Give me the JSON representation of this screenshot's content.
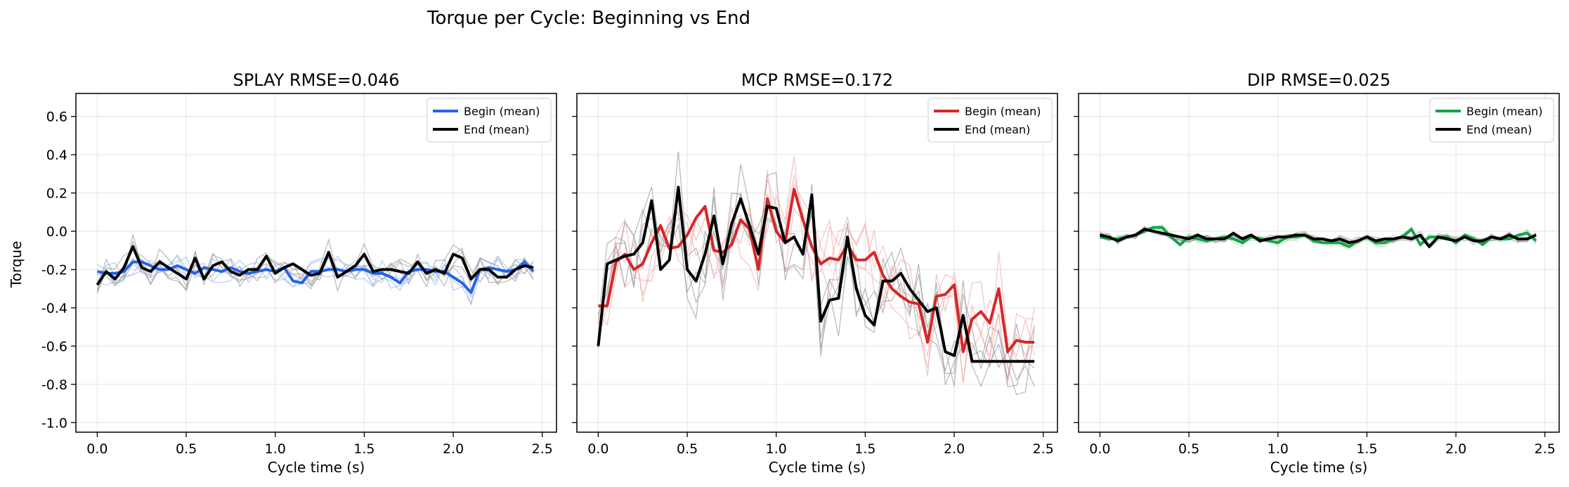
{
  "figure_title": "Torque per Cycle: Beginning vs End",
  "shared_ylabel": "Torque",
  "chart_data": [
    {
      "type": "line",
      "title": "SPLAY  RMSE=0.046",
      "xlabel": "Cycle time (s)",
      "ylabel": "Torque",
      "xlim": [
        -0.12,
        2.58
      ],
      "ylim": [
        -1.05,
        0.72
      ],
      "xticks": [
        0.0,
        0.5,
        1.0,
        1.5,
        2.0,
        2.5
      ],
      "yticks": [
        -1.0,
        -0.8,
        -0.6,
        -0.4,
        -0.2,
        0.0,
        0.2,
        0.4,
        0.6
      ],
      "grid": true,
      "legend_position": "top-right",
      "colors": {
        "begin": "#2563eb",
        "end": "#000000",
        "begin_trials": "#9db4e8",
        "end_trials": "#999999"
      },
      "x": [
        0.0,
        0.05,
        0.1,
        0.15,
        0.2,
        0.25,
        0.3,
        0.35,
        0.4,
        0.45,
        0.5,
        0.55,
        0.6,
        0.65,
        0.7,
        0.75,
        0.8,
        0.85,
        0.9,
        0.95,
        1.0,
        1.05,
        1.1,
        1.15,
        1.2,
        1.25,
        1.3,
        1.35,
        1.4,
        1.45,
        1.5,
        1.55,
        1.6,
        1.65,
        1.7,
        1.75,
        1.8,
        1.85,
        1.9,
        1.95,
        2.0,
        2.05,
        2.1,
        2.15,
        2.2,
        2.25,
        2.3,
        2.35,
        2.4,
        2.45
      ],
      "series": [
        {
          "name": "Begin (mean)",
          "values": [
            -0.21,
            -0.22,
            -0.22,
            -0.21,
            -0.16,
            -0.16,
            -0.18,
            -0.2,
            -0.2,
            -0.18,
            -0.2,
            -0.22,
            -0.19,
            -0.2,
            -0.21,
            -0.19,
            -0.21,
            -0.22,
            -0.21,
            -0.2,
            -0.21,
            -0.19,
            -0.26,
            -0.27,
            -0.21,
            -0.21,
            -0.2,
            -0.2,
            -0.21,
            -0.2,
            -0.2,
            -0.22,
            -0.22,
            -0.24,
            -0.27,
            -0.21,
            -0.2,
            -0.2,
            -0.21,
            -0.21,
            -0.24,
            -0.27,
            -0.32,
            -0.2,
            -0.19,
            -0.2,
            -0.21,
            -0.2,
            -0.16,
            -0.21
          ]
        },
        {
          "name": "End (mean)",
          "values": [
            -0.28,
            -0.21,
            -0.25,
            -0.19,
            -0.08,
            -0.19,
            -0.21,
            -0.16,
            -0.19,
            -0.22,
            -0.25,
            -0.14,
            -0.25,
            -0.18,
            -0.16,
            -0.21,
            -0.23,
            -0.2,
            -0.2,
            -0.13,
            -0.22,
            -0.19,
            -0.17,
            -0.2,
            -0.23,
            -0.22,
            -0.11,
            -0.24,
            -0.21,
            -0.18,
            -0.12,
            -0.21,
            -0.2,
            -0.2,
            -0.21,
            -0.22,
            -0.16,
            -0.22,
            -0.2,
            -0.22,
            -0.12,
            -0.14,
            -0.25,
            -0.2,
            -0.2,
            -0.24,
            -0.24,
            -0.2,
            -0.18,
            -0.19
          ]
        }
      ]
    },
    {
      "type": "line",
      "title": "MCP  RMSE=0.172",
      "xlabel": "Cycle time (s)",
      "ylabel": "",
      "xlim": [
        -0.12,
        2.58
      ],
      "ylim": [
        -1.05,
        0.72
      ],
      "xticks": [
        0.0,
        0.5,
        1.0,
        1.5,
        2.0,
        2.5
      ],
      "yticks": [
        -1.0,
        -0.8,
        -0.6,
        -0.4,
        -0.2,
        0.0,
        0.2,
        0.4,
        0.6
      ],
      "grid": true,
      "legend_position": "top-right",
      "colors": {
        "begin": "#d62728",
        "end": "#000000",
        "begin_trials": "#f2a9aa",
        "end_trials": "#999999"
      },
      "x": [
        0.0,
        0.05,
        0.1,
        0.15,
        0.2,
        0.25,
        0.3,
        0.35,
        0.4,
        0.45,
        0.5,
        0.55,
        0.6,
        0.65,
        0.7,
        0.75,
        0.8,
        0.85,
        0.9,
        0.95,
        1.0,
        1.05,
        1.1,
        1.15,
        1.2,
        1.25,
        1.3,
        1.35,
        1.4,
        1.45,
        1.5,
        1.55,
        1.6,
        1.65,
        1.7,
        1.75,
        1.8,
        1.85,
        1.9,
        1.95,
        2.0,
        2.05,
        2.1,
        2.15,
        2.2,
        2.25,
        2.3,
        2.35,
        2.4,
        2.45
      ],
      "series": [
        {
          "name": "Begin (mean)",
          "values": [
            -0.39,
            -0.39,
            -0.16,
            -0.12,
            -0.2,
            -0.17,
            -0.06,
            0.03,
            -0.09,
            -0.08,
            -0.02,
            0.07,
            0.13,
            -0.1,
            -0.11,
            -0.07,
            0.06,
            0.01,
            -0.2,
            0.17,
            0.0,
            -0.06,
            0.22,
            0.06,
            -0.08,
            -0.17,
            -0.14,
            -0.15,
            -0.07,
            -0.15,
            -0.15,
            -0.11,
            -0.23,
            -0.3,
            -0.34,
            -0.37,
            -0.38,
            -0.58,
            -0.34,
            -0.33,
            -0.28,
            -0.63,
            -0.46,
            -0.42,
            -0.48,
            -0.3,
            -0.63,
            -0.57,
            -0.58,
            -0.58
          ]
        },
        {
          "name": "End (mean)",
          "values": [
            -0.6,
            -0.17,
            -0.15,
            -0.13,
            -0.12,
            -0.06,
            0.16,
            -0.2,
            -0.15,
            0.23,
            -0.2,
            -0.26,
            -0.12,
            0.08,
            -0.17,
            0.04,
            0.17,
            0.03,
            -0.12,
            0.13,
            0.12,
            -0.06,
            -0.03,
            -0.12,
            0.19,
            -0.47,
            -0.36,
            -0.35,
            -0.03,
            -0.3,
            -0.44,
            -0.49,
            -0.26,
            -0.26,
            -0.22,
            -0.3,
            -0.36,
            -0.42,
            -0.4,
            -0.63,
            -0.65,
            -0.44,
            -0.68,
            -0.68,
            -0.68,
            -0.68,
            -0.68,
            -0.68,
            -0.68,
            -0.68
          ]
        }
      ]
    },
    {
      "type": "line",
      "title": "DIP  RMSE=0.025",
      "xlabel": "Cycle time (s)",
      "ylabel": "",
      "xlim": [
        -0.12,
        2.58
      ],
      "ylim": [
        -1.05,
        0.72
      ],
      "xticks": [
        0.0,
        0.5,
        1.0,
        1.5,
        2.0,
        2.5
      ],
      "yticks": [
        -1.0,
        -0.8,
        -0.6,
        -0.4,
        -0.2,
        0.0,
        0.2,
        0.4,
        0.6
      ],
      "grid": true,
      "legend_position": "top-right",
      "colors": {
        "begin": "#16a34a",
        "end": "#000000",
        "begin_trials": "#9fd9b1",
        "end_trials": "#999999"
      },
      "x": [
        0.0,
        0.05,
        0.1,
        0.15,
        0.2,
        0.25,
        0.3,
        0.35,
        0.4,
        0.45,
        0.5,
        0.55,
        0.6,
        0.65,
        0.7,
        0.75,
        0.8,
        0.85,
        0.9,
        0.95,
        1.0,
        1.05,
        1.1,
        1.15,
        1.2,
        1.25,
        1.3,
        1.35,
        1.4,
        1.45,
        1.5,
        1.55,
        1.6,
        1.65,
        1.7,
        1.75,
        1.8,
        1.85,
        1.9,
        1.95,
        2.0,
        2.05,
        2.1,
        2.15,
        2.2,
        2.25,
        2.3,
        2.35,
        2.4,
        2.45
      ],
      "series": [
        {
          "name": "Begin (mean)",
          "values": [
            -0.03,
            -0.04,
            -0.04,
            -0.03,
            -0.02,
            0.0,
            0.02,
            0.02,
            -0.03,
            -0.07,
            -0.03,
            -0.04,
            -0.05,
            -0.04,
            -0.03,
            -0.04,
            -0.06,
            -0.03,
            -0.04,
            -0.05,
            -0.06,
            -0.03,
            -0.03,
            -0.02,
            -0.05,
            -0.06,
            -0.06,
            -0.06,
            -0.08,
            -0.05,
            -0.03,
            -0.06,
            -0.06,
            -0.04,
            -0.03,
            0.01,
            -0.07,
            -0.03,
            -0.03,
            -0.03,
            -0.06,
            -0.02,
            -0.04,
            -0.07,
            -0.03,
            -0.04,
            -0.04,
            -0.02,
            -0.01,
            -0.05
          ]
        },
        {
          "name": "End (mean)",
          "values": [
            -0.02,
            -0.03,
            -0.05,
            -0.03,
            -0.02,
            0.01,
            0.0,
            -0.01,
            -0.02,
            -0.03,
            -0.04,
            -0.02,
            -0.04,
            -0.04,
            -0.04,
            -0.01,
            -0.04,
            -0.02,
            -0.05,
            -0.04,
            -0.03,
            -0.03,
            -0.02,
            -0.02,
            -0.04,
            -0.04,
            -0.05,
            -0.04,
            -0.06,
            -0.05,
            -0.03,
            -0.05,
            -0.04,
            -0.04,
            -0.03,
            -0.04,
            -0.02,
            -0.08,
            -0.03,
            -0.04,
            -0.05,
            -0.03,
            -0.05,
            -0.05,
            -0.03,
            -0.04,
            -0.02,
            -0.04,
            -0.04,
            -0.02
          ]
        }
      ]
    }
  ]
}
